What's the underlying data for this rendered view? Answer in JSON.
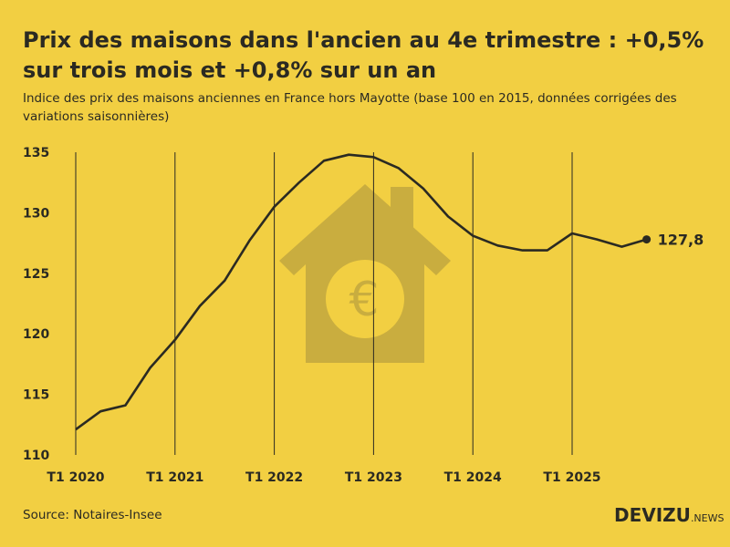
{
  "title": "Prix des maisons dans l'ancien au 4e trimestre : +0,5% sur trois mois et +0,8% sur un an",
  "subtitle": "Indice des prix des maisons anciennes en France hors Mayotte (base 100 en 2015, données corrigées des variations saisonnières)",
  "source": "Source: Notaires-Insee",
  "logo": {
    "main": "DEVIZU",
    "suffix": ".NEWS"
  },
  "colors": {
    "background": "#f2cf42",
    "line": "#2b2a22",
    "illustration": "#c9ad3f"
  },
  "illustration": "house-with-euro-icon",
  "chart_data": {
    "type": "line",
    "title": "",
    "xlabel": "",
    "ylabel": "",
    "ylim": [
      110,
      135
    ],
    "yticks": [
      110,
      115,
      120,
      125,
      130,
      135
    ],
    "xtick_labels": [
      "T1 2020",
      "T1 2021",
      "T1 2022",
      "T1 2023",
      "T1 2024",
      "T1 2025"
    ],
    "grid": "vertical lines at T1 of each year",
    "x": [
      "T1 2020",
      "T2 2020",
      "T3 2020",
      "T4 2020",
      "T1 2021",
      "T2 2021",
      "T3 2021",
      "T4 2021",
      "T1 2022",
      "T2 2022",
      "T3 2022",
      "T4 2022",
      "T1 2023",
      "T2 2023",
      "T3 2023",
      "T4 2023",
      "T1 2024",
      "T2 2024",
      "T3 2024",
      "T4 2024",
      "T1 2025",
      "T2 2025",
      "T3 2025",
      "T4 2025"
    ],
    "values": [
      112.1,
      113.6,
      114.1,
      117.2,
      119.5,
      122.3,
      124.4,
      127.7,
      130.5,
      132.5,
      134.3,
      134.8,
      134.6,
      133.7,
      132.0,
      129.7,
      128.1,
      127.3,
      126.9,
      126.9,
      128.3,
      127.8,
      127.2,
      127.8
    ],
    "last_label": "127,8"
  }
}
